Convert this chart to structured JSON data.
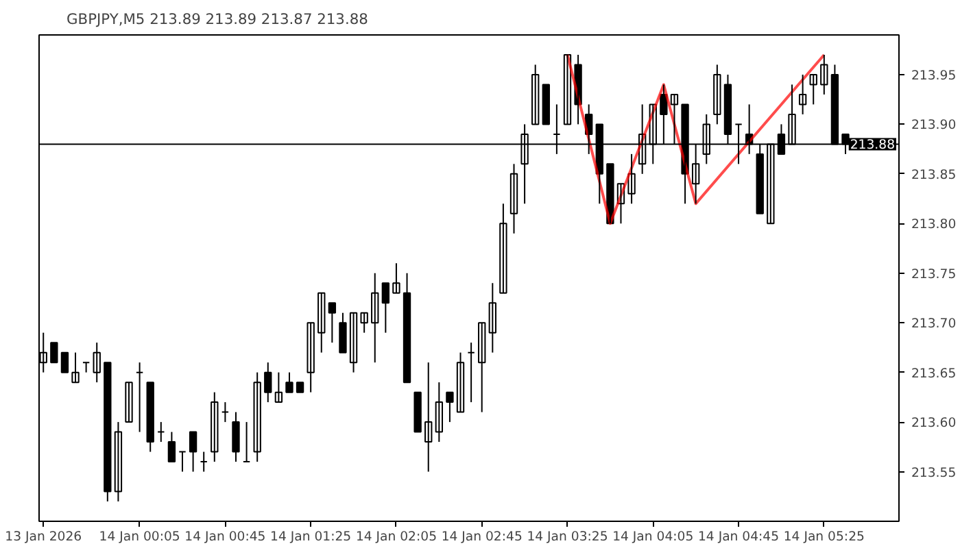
{
  "chart_data": {
    "type": "candlestick",
    "title": "GBPJPY,M5  213.89 213.89 213.87 213.88",
    "x": [
      "2026-01-13T23:20",
      "2026-01-13T23:25",
      "2026-01-13T23:30",
      "2026-01-13T23:35",
      "2026-01-13T23:40",
      "2026-01-13T23:45",
      "2026-01-13T23:50",
      "2026-01-13T23:55",
      "2026-01-14T00:00",
      "2026-01-14T00:05",
      "2026-01-14T00:10",
      "2026-01-14T00:15",
      "2026-01-14T00:20",
      "2026-01-14T00:25",
      "2026-01-14T00:30",
      "2026-01-14T00:35",
      "2026-01-14T00:40",
      "2026-01-14T00:45",
      "2026-01-14T00:50",
      "2026-01-14T00:55",
      "2026-01-14T01:00",
      "2026-01-14T01:05",
      "2026-01-14T01:10",
      "2026-01-14T01:15",
      "2026-01-14T01:20",
      "2026-01-14T01:25",
      "2026-01-14T01:30",
      "2026-01-14T01:35",
      "2026-01-14T01:40",
      "2026-01-14T01:45",
      "2026-01-14T01:50",
      "2026-01-14T01:55",
      "2026-01-14T02:00",
      "2026-01-14T02:05",
      "2026-01-14T02:10",
      "2026-01-14T02:15",
      "2026-01-14T02:20",
      "2026-01-14T02:25",
      "2026-01-14T02:30",
      "2026-01-14T02:35",
      "2026-01-14T02:40",
      "2026-01-14T02:45",
      "2026-01-14T02:50",
      "2026-01-14T02:55",
      "2026-01-14T03:00",
      "2026-01-14T03:05",
      "2026-01-14T03:10",
      "2026-01-14T03:15",
      "2026-01-14T03:20",
      "2026-01-14T03:25",
      "2026-01-14T03:30",
      "2026-01-14T03:35",
      "2026-01-14T03:40",
      "2026-01-14T03:45",
      "2026-01-14T03:50",
      "2026-01-14T03:55",
      "2026-01-14T04:00",
      "2026-01-14T04:05",
      "2026-01-14T04:10",
      "2026-01-14T04:15",
      "2026-01-14T04:20",
      "2026-01-14T04:25",
      "2026-01-14T04:30",
      "2026-01-14T04:35",
      "2026-01-14T04:40",
      "2026-01-14T04:45",
      "2026-01-14T04:50",
      "2026-01-14T04:55",
      "2026-01-14T05:00",
      "2026-01-14T05:05",
      "2026-01-14T05:10",
      "2026-01-14T05:15",
      "2026-01-14T05:20",
      "2026-01-14T05:25",
      "2026-01-14T05:30",
      "2026-01-14T05:35"
    ],
    "ohlc": [
      [
        213.66,
        213.69,
        213.65,
        213.67
      ],
      [
        213.68,
        213.68,
        213.66,
        213.66
      ],
      [
        213.67,
        213.67,
        213.65,
        213.65
      ],
      [
        213.64,
        213.67,
        213.64,
        213.65
      ],
      [
        213.66,
        213.66,
        213.65,
        213.66
      ],
      [
        213.65,
        213.68,
        213.64,
        213.67
      ],
      [
        213.66,
        213.66,
        213.52,
        213.53
      ],
      [
        213.53,
        213.6,
        213.52,
        213.59
      ],
      [
        213.6,
        213.64,
        213.6,
        213.64
      ],
      [
        213.65,
        213.66,
        213.59,
        213.65
      ],
      [
        213.64,
        213.64,
        213.57,
        213.58
      ],
      [
        213.59,
        213.6,
        213.58,
        213.59
      ],
      [
        213.58,
        213.59,
        213.56,
        213.56
      ],
      [
        213.57,
        213.57,
        213.55,
        213.57
      ],
      [
        213.59,
        213.59,
        213.55,
        213.57
      ],
      [
        213.56,
        213.57,
        213.55,
        213.56
      ],
      [
        213.57,
        213.63,
        213.56,
        213.62
      ],
      [
        213.61,
        213.62,
        213.6,
        213.61
      ],
      [
        213.6,
        213.61,
        213.56,
        213.57
      ],
      [
        213.56,
        213.6,
        213.56,
        213.56
      ],
      [
        213.57,
        213.65,
        213.56,
        213.64
      ],
      [
        213.65,
        213.66,
        213.62,
        213.63
      ],
      [
        213.62,
        213.65,
        213.62,
        213.63
      ],
      [
        213.64,
        213.65,
        213.63,
        213.63
      ],
      [
        213.64,
        213.64,
        213.63,
        213.63
      ],
      [
        213.65,
        213.7,
        213.63,
        213.7
      ],
      [
        213.69,
        213.73,
        213.67,
        213.73
      ],
      [
        213.72,
        213.72,
        213.68,
        213.71
      ],
      [
        213.7,
        213.71,
        213.67,
        213.67
      ],
      [
        213.66,
        213.71,
        213.65,
        213.71
      ],
      [
        213.7,
        213.71,
        213.69,
        213.71
      ],
      [
        213.7,
        213.75,
        213.66,
        213.73
      ],
      [
        213.74,
        213.74,
        213.69,
        213.72
      ],
      [
        213.73,
        213.76,
        213.73,
        213.74
      ],
      [
        213.73,
        213.75,
        213.64,
        213.64
      ],
      [
        213.63,
        213.63,
        213.59,
        213.59
      ],
      [
        213.58,
        213.66,
        213.55,
        213.6
      ],
      [
        213.59,
        213.64,
        213.58,
        213.62
      ],
      [
        213.63,
        213.63,
        213.6,
        213.62
      ],
      [
        213.61,
        213.67,
        213.61,
        213.66
      ],
      [
        213.67,
        213.68,
        213.62,
        213.67
      ],
      [
        213.66,
        213.7,
        213.61,
        213.7
      ],
      [
        213.69,
        213.74,
        213.67,
        213.72
      ],
      [
        213.73,
        213.82,
        213.73,
        213.8
      ],
      [
        213.81,
        213.86,
        213.79,
        213.85
      ],
      [
        213.86,
        213.9,
        213.82,
        213.89
      ],
      [
        213.9,
        213.96,
        213.9,
        213.95
      ],
      [
        213.94,
        213.94,
        213.9,
        213.9
      ],
      [
        213.89,
        213.92,
        213.87,
        213.89
      ],
      [
        213.9,
        213.97,
        213.9,
        213.97
      ],
      [
        213.96,
        213.97,
        213.9,
        213.92
      ],
      [
        213.91,
        213.92,
        213.87,
        213.89
      ],
      [
        213.9,
        213.9,
        213.82,
        213.85
      ],
      [
        213.86,
        213.86,
        213.8,
        213.8
      ],
      [
        213.82,
        213.84,
        213.8,
        213.84
      ],
      [
        213.83,
        213.87,
        213.82,
        213.85
      ],
      [
        213.86,
        213.92,
        213.85,
        213.89
      ],
      [
        213.88,
        213.92,
        213.86,
        213.92
      ],
      [
        213.93,
        213.94,
        213.88,
        213.91
      ],
      [
        213.92,
        213.93,
        213.88,
        213.93
      ],
      [
        213.92,
        213.92,
        213.82,
        213.85
      ],
      [
        213.84,
        213.88,
        213.82,
        213.86
      ],
      [
        213.87,
        213.91,
        213.86,
        213.9
      ],
      [
        213.91,
        213.96,
        213.9,
        213.95
      ],
      [
        213.94,
        213.95,
        213.88,
        213.89
      ],
      [
        213.9,
        213.9,
        213.86,
        213.9
      ],
      [
        213.89,
        213.92,
        213.87,
        213.88
      ],
      [
        213.87,
        213.88,
        213.81,
        213.81
      ],
      [
        213.8,
        213.88,
        213.8,
        213.88
      ],
      [
        213.89,
        213.9,
        213.87,
        213.87
      ],
      [
        213.88,
        213.94,
        213.88,
        213.91
      ],
      [
        213.92,
        213.95,
        213.91,
        213.93
      ],
      [
        213.94,
        213.95,
        213.92,
        213.95
      ],
      [
        213.94,
        213.97,
        213.93,
        213.96
      ],
      [
        213.95,
        213.96,
        213.88,
        213.88
      ],
      [
        213.89,
        213.89,
        213.87,
        213.88
      ]
    ],
    "series": [
      {
        "type": "line",
        "color": "#ff0000",
        "x": [
          "2026-01-14T03:25",
          "2026-01-14T03:45",
          "2026-01-14T04:10",
          "2026-01-14T04:25",
          "2026-01-14T05:25"
        ],
        "values": [
          213.97,
          213.8,
          213.94,
          213.82,
          213.97
        ]
      }
    ],
    "ref_lines": [
      {
        "axis": "y",
        "value": 213.88,
        "label": "213.88",
        "color": "#000000"
      }
    ],
    "xlim": [
      "2026-01-13T23:18",
      "2026-01-14T06:00"
    ],
    "ylim": [
      213.5,
      213.99
    ],
    "xticks": [
      {
        "value": "2026-01-13T23:20",
        "label": "13 Jan 2026"
      },
      {
        "value": "2026-01-14T00:05",
        "label": "14 Jan 00:05"
      },
      {
        "value": "2026-01-14T00:45",
        "label": "14 Jan 00:45"
      },
      {
        "value": "2026-01-14T01:25",
        "label": "14 Jan 01:25"
      },
      {
        "value": "2026-01-14T02:05",
        "label": "14 Jan 02:05"
      },
      {
        "value": "2026-01-14T02:45",
        "label": "14 Jan 02:45"
      },
      {
        "value": "2026-01-14T03:25",
        "label": "14 Jan 03:25"
      },
      {
        "value": "2026-01-14T04:05",
        "label": "14 Jan 04:05"
      },
      {
        "value": "2026-01-14T04:45",
        "label": "14 Jan 04:45"
      },
      {
        "value": "2026-01-14T05:25",
        "label": "14 Jan 05:25"
      }
    ],
    "yticks": [
      {
        "value": 213.55,
        "label": "213.55"
      },
      {
        "value": 213.6,
        "label": "213.60"
      },
      {
        "value": 213.65,
        "label": "213.65"
      },
      {
        "value": 213.7,
        "label": "213.70"
      },
      {
        "value": 213.75,
        "label": "213.75"
      },
      {
        "value": 213.8,
        "label": "213.80"
      },
      {
        "value": 213.85,
        "label": "213.85"
      },
      {
        "value": 213.9,
        "label": "213.90"
      },
      {
        "value": 213.95,
        "label": "213.95"
      }
    ]
  }
}
